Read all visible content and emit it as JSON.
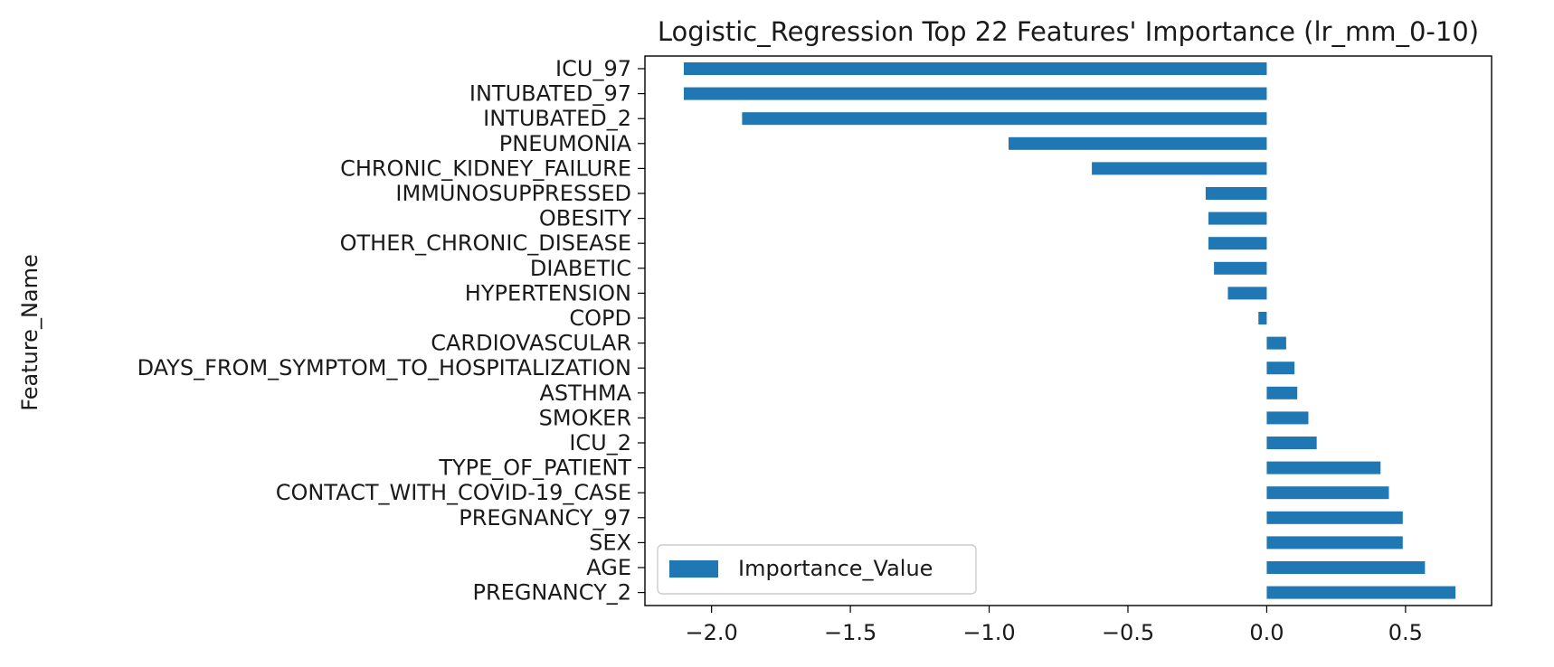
{
  "chart_data": {
    "type": "bar",
    "orientation": "horizontal",
    "title": "Logistic_Regression Top 22 Features' Importance (lr_mm_0-10)",
    "xlabel": "",
    "ylabel": "Feature_Name",
    "xlim": [
      -2.24,
      0.81
    ],
    "xticks": [
      -2.0,
      -1.5,
      -1.0,
      -0.5,
      0.0,
      0.5
    ],
    "xtick_labels": [
      "−2.0",
      "−1.5",
      "−1.0",
      "−0.5",
      "0.0",
      "0.5"
    ],
    "grid": false,
    "legend_position": "lower-left",
    "series": [
      {
        "name": "Importance_Value",
        "color": "#1f77b4",
        "categories": [
          "ICU_97",
          "INTUBATED_97",
          "INTUBATED_2",
          "PNEUMONIA",
          "CHRONIC_KIDNEY_FAILURE",
          "IMMUNOSUPPRESSED",
          "OBESITY",
          "OTHER_CHRONIC_DISEASE",
          "DIABETIC",
          "HYPERTENSION",
          "COPD",
          "CARDIOVASCULAR",
          "DAYS_FROM_SYMPTOM_TO_HOSPITALIZATION",
          "ASTHMA",
          "SMOKER",
          "ICU_2",
          "TYPE_OF_PATIENT",
          "CONTACT_WITH_COVID-19_CASE",
          "PREGNANCY_97",
          "SEX",
          "AGE",
          "PREGNANCY_2"
        ],
        "values": [
          -2.1,
          -2.1,
          -1.89,
          -0.93,
          -0.63,
          -0.22,
          -0.21,
          -0.21,
          -0.19,
          -0.14,
          -0.03,
          0.07,
          0.1,
          0.11,
          0.15,
          0.18,
          0.41,
          0.44,
          0.49,
          0.49,
          0.57,
          0.68
        ]
      }
    ]
  }
}
